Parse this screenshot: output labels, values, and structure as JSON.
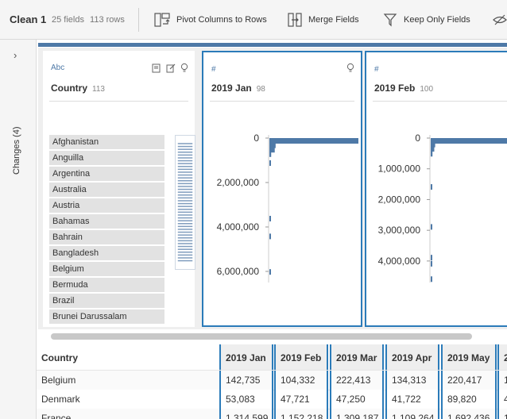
{
  "toolbar": {
    "title": "Clean 1",
    "fields": "25 fields",
    "rows": "113 rows",
    "pivot_label": "Pivot Columns to Rows",
    "merge_label": "Merge Fields",
    "keep_label": "Keep Only Fields"
  },
  "sidebar": {
    "changes_label": "Changes (4)"
  },
  "cards": {
    "country": {
      "type": "Abc",
      "name": "Country",
      "count": "113",
      "values": [
        "Afghanistan",
        "Anguilla",
        "Argentina",
        "Australia",
        "Austria",
        "Bahamas",
        "Bahrain",
        "Bangladesh",
        "Belgium",
        "Bermuda",
        "Brazil",
        "Brunei Darussalam"
      ]
    },
    "jan": {
      "type": "#",
      "name": "2019 Jan",
      "count": "98"
    },
    "feb": {
      "type": "#",
      "name": "2019 Feb",
      "count": "100"
    }
  },
  "chart_data": [
    {
      "type": "bar",
      "field": "2019 Jan",
      "orientation": "horizontal",
      "y_ticks": [
        "0",
        "2,000,000",
        "4,000,000",
        "6,000,000"
      ],
      "y_range": [
        0,
        6500000
      ],
      "bins": [
        {
          "start": 0,
          "relative": 1.0
        },
        {
          "start": 200000,
          "relative": 0.07
        },
        {
          "start": 400000,
          "relative": 0.06
        },
        {
          "start": 600000,
          "relative": 0.02
        },
        {
          "start": 1000000,
          "relative": 0.01
        },
        {
          "start": 3500000,
          "relative": 0.01
        },
        {
          "start": 4300000,
          "relative": 0.01
        },
        {
          "start": 5900000,
          "relative": 0.01
        }
      ]
    },
    {
      "type": "bar",
      "field": "2019 Feb",
      "orientation": "horizontal",
      "y_ticks": [
        "0",
        "1,000,000",
        "2,000,000",
        "3,000,000",
        "4,000,000"
      ],
      "y_range": [
        0,
        4700000
      ],
      "bins": [
        {
          "start": 0,
          "relative": 1.0
        },
        {
          "start": 120000,
          "relative": 0.05
        },
        {
          "start": 260000,
          "relative": 0.04
        },
        {
          "start": 420000,
          "relative": 0.02
        },
        {
          "start": 1500000,
          "relative": 0.01
        },
        {
          "start": 2800000,
          "relative": 0.01
        },
        {
          "start": 3800000,
          "relative": 0.01
        },
        {
          "start": 4000000,
          "relative": 0.01
        },
        {
          "start": 4500000,
          "relative": 0.01
        }
      ]
    }
  ],
  "grid": {
    "columns": [
      "Country",
      "2019 Jan",
      "2019 Feb",
      "2019 Mar",
      "2019 Apr",
      "2019 May",
      "2"
    ],
    "rows": [
      [
        "Belgium",
        "142,735",
        "104,332",
        "222,413",
        "134,313",
        "220,417",
        "1"
      ],
      [
        "Denmark",
        "53,083",
        "47,721",
        "47,250",
        "41,722",
        "89,820",
        "4"
      ],
      [
        "France",
        "1,314,599",
        "1,152,218",
        "1,309,187",
        "1,109,264",
        "1,692,436",
        "1"
      ]
    ]
  },
  "colors": {
    "accent": "#2b7bb9",
    "bar": "#4e79a7"
  }
}
